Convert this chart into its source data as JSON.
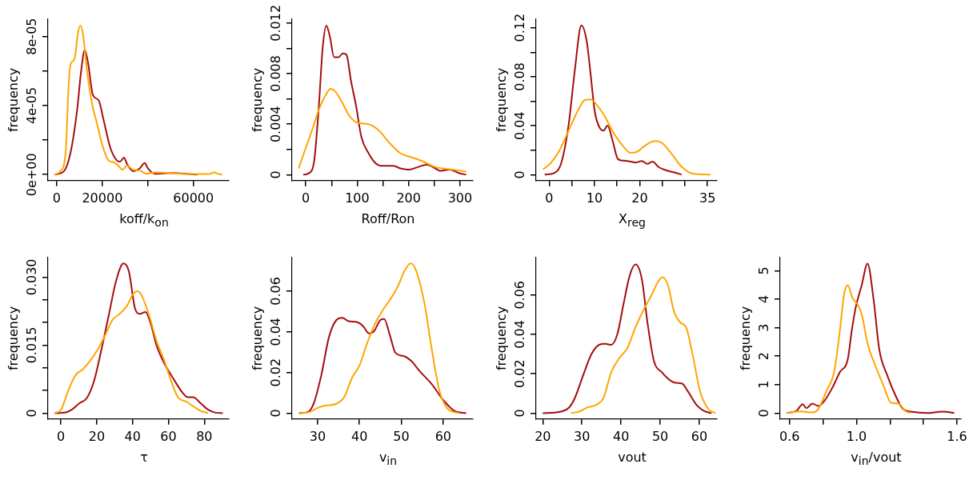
{
  "chart_data": [
    {
      "type": "line",
      "xlabel": "koff/k$_{on}$",
      "ylabel": "frequency",
      "marker": "none",
      "grid": false,
      "xlim": [
        -3840,
        75540
      ],
      "ylim": [
        -3.5e-06,
        9e-05
      ],
      "xticks": [
        0,
        20000,
        {
          "value": 40000,
          "label": null
        },
        60000
      ],
      "yticks": [
        {
          "value": 0,
          "label": "0e+00"
        },
        {
          "value": 2e-05,
          "label": null
        },
        {
          "value": 4e-05,
          "label": "4e-05"
        },
        {
          "value": 6e-05,
          "label": null
        },
        {
          "value": 8e-05,
          "label": "8e-05"
        }
      ],
      "series": [
        {
          "color": "#ffa500",
          "x": [
            -900,
            1700,
            3900,
            5300,
            6100,
            7800,
            9300,
            10400,
            11600,
            13300,
            15500,
            17600,
            19800,
            22700,
            24900,
            27000,
            28800,
            30900,
            33500,
            36400,
            39300,
            43700,
            50900,
            58100,
            66800,
            69000,
            71100,
            72600
          ],
          "values": [
            0,
            2e-06,
            1.3e-05,
            5.4e-05,
            6.4e-05,
            6.7e-05,
            8.2e-05,
            8.63e-05,
            8.05e-05,
            6e-05,
            4.1e-05,
            3e-05,
            1.8e-05,
            8.3e-06,
            7.2e-06,
            5.2e-06,
            2.8e-06,
            5.2e-06,
            2.8e-06,
            2.4e-06,
            5e-07,
            1.3e-06,
            8e-07,
            3e-07,
            3e-07,
            1.3e-06,
            3e-07,
            0
          ]
        },
        {
          "color": "#a50e0e",
          "x": [
            -900,
            3200,
            6100,
            9000,
            10700,
            12300,
            13700,
            15900,
            18400,
            20500,
            23400,
            26300,
            27800,
            29500,
            30900,
            33500,
            36400,
            38600,
            40000,
            42900,
            50900,
            58100,
            61700
          ],
          "values": [
            0,
            2e-06,
            1.3e-05,
            3.8e-05,
            6e-05,
            7.22e-05,
            6.5e-05,
            4.6e-05,
            4.3e-05,
            3.2e-05,
            1.6e-05,
            8.3e-06,
            7.5e-06,
            9.9e-06,
            6e-06,
            2e-06,
            3.6e-06,
            6.7e-06,
            3.6e-06,
            5e-07,
            9e-07,
            3e-07,
            0
          ]
        }
      ]
    },
    {
      "type": "line",
      "xlabel": "Roff/Ron",
      "ylabel": "frequency",
      "marker": "none",
      "grid": false,
      "xlim": [
        -26.7,
        325
      ],
      "ylim": [
        -0.00047,
        0.0123
      ],
      "xticks": [
        0,
        {
          "value": 50,
          "label": null
        },
        100,
        {
          "value": 150,
          "label": null
        },
        200,
        {
          "value": 250,
          "label": null
        },
        300
      ],
      "yticks": [
        0,
        {
          "value": 0.002,
          "label": null
        },
        0.004,
        {
          "value": 0.006,
          "label": null
        },
        0.008,
        {
          "value": 0.01,
          "label": null
        },
        0.012
      ],
      "series": [
        {
          "color": "#ffa500",
          "x": [
            -14,
            -1,
            12,
            26,
            40,
            48,
            57,
            71,
            84,
            101,
            122,
            142,
            163,
            184,
            204,
            225,
            252,
            286,
            312
          ],
          "values": [
            0.0005,
            0.002,
            0.0035,
            0.0052,
            0.0064,
            0.0068,
            0.0066,
            0.0057,
            0.0047,
            0.0041,
            0.004,
            0.0035,
            0.0025,
            0.0017,
            0.0014,
            0.0011,
            0.0006,
            0.0004,
            0.00025
          ]
        },
        {
          "color": "#a50e0e",
          "x": [
            -5,
            5,
            16,
            25,
            33,
            40,
            47,
            55,
            64,
            72,
            79,
            88,
            98,
            108,
            122,
            136,
            149,
            170,
            184,
            201,
            218,
            235,
            252,
            262,
            279,
            300,
            312
          ],
          "values": [
            0,
            0.0001,
            0.001,
            0.0052,
            0.0101,
            0.0118,
            0.0109,
            0.0093,
            0.0093,
            0.0096,
            0.0095,
            0.0074,
            0.0054,
            0.003,
            0.0017,
            0.0009,
            0.0007,
            0.0007,
            0.0005,
            0.0004,
            0.0006,
            0.0008,
            0.0005,
            0.0003,
            0.0004,
            0.0001,
            0
          ]
        }
      ]
    },
    {
      "type": "line",
      "xlabel": "X$_{reg}$",
      "ylabel": "frequency",
      "marker": "none",
      "grid": false,
      "xlim": [
        -2.9,
        37.1
      ],
      "ylim": [
        -0.0049,
        0.127
      ],
      "xticks": [
        0,
        {
          "value": 5,
          "label": null
        },
        10,
        {
          "value": 15,
          "label": null
        },
        20,
        {
          "value": 25,
          "label": null
        },
        {
          "value": 30,
          "label": null
        },
        35
      ],
      "yticks": [
        0,
        {
          "value": 0.02,
          "label": null
        },
        0.04,
        {
          "value": 0.06,
          "label": null
        },
        0.08,
        {
          "value": 0.1,
          "label": null
        },
        0.12
      ],
      "series": [
        {
          "color": "#ffa500",
          "x": [
            -1.4,
            0.2,
            2.3,
            4.3,
            6.3,
            7.9,
            9.1,
            10.3,
            12.4,
            14.4,
            16.4,
            18,
            19.2,
            21.3,
            23.3,
            24.9,
            26.9,
            29.3,
            31.8,
            35.7
          ],
          "values": [
            0.0043,
            0.0089,
            0.02,
            0.036,
            0.052,
            0.061,
            0.0615,
            0.058,
            0.047,
            0.033,
            0.023,
            0.0178,
            0.0183,
            0.024,
            0.0275,
            0.026,
            0.0178,
            0.0064,
            0.0008,
            0
          ]
        },
        {
          "color": "#a50e0e",
          "x": [
            -1,
            1.1,
            2.7,
            4.3,
            5.7,
            7.1,
            8.3,
            9.1,
            10.1,
            11.2,
            12,
            12.9,
            14,
            15.2,
            16.4,
            18,
            19.2,
            20.5,
            21.7,
            22.9,
            24.1,
            25.7,
            27.7,
            29.3
          ],
          "values": [
            0,
            0.0013,
            0.01,
            0.041,
            0.0865,
            0.122,
            0.109,
            0.084,
            0.051,
            0.038,
            0.036,
            0.04,
            0.028,
            0.0127,
            0.0114,
            0.0107,
            0.0099,
            0.0112,
            0.0089,
            0.0107,
            0.0064,
            0.0038,
            0.0018,
            0
          ]
        }
      ]
    },
    {
      "type": "line",
      "xlabel": "τ",
      "ylabel": "frequency",
      "marker": "none",
      "grid": false,
      "xlim": [
        -7.2,
        93.7
      ],
      "ylim": [
        -0.0013,
        0.0343
      ],
      "xticks": [
        0,
        20,
        40,
        60,
        80
      ],
      "yticks": [
        0,
        {
          "value": 0.005,
          "label": null
        },
        {
          "value": 0.01,
          "label": null
        },
        0.015,
        {
          "value": 0.02,
          "label": null
        },
        {
          "value": 0.025,
          "label": null
        },
        {
          "value": 0.03,
          "label": "0.030"
        }
      ],
      "series": [
        {
          "color": "#ffa500",
          "x": [
            -3.5,
            0,
            4.1,
            8.2,
            12.3,
            16.4,
            20.5,
            24.6,
            28.7,
            32.8,
            36.9,
            40,
            42.7,
            45.1,
            49.2,
            53.3,
            57.4,
            61.5,
            65.6,
            69.7,
            73.8,
            77.9,
            82
          ],
          "values": [
            0,
            0.0007,
            0.005,
            0.0084,
            0.0097,
            0.0116,
            0.014,
            0.0171,
            0.0205,
            0.0219,
            0.0237,
            0.0261,
            0.0269,
            0.0259,
            0.0216,
            0.016,
            0.0119,
            0.0071,
            0.0033,
            0.0026,
            0.0015,
            0.0005,
            0
          ]
        },
        {
          "color": "#a50e0e",
          "x": [
            -3.5,
            2.1,
            6.2,
            10.3,
            14.4,
            18.5,
            22.6,
            26.7,
            30.8,
            34.9,
            37.9,
            41.4,
            44.1,
            47.2,
            50.3,
            53.3,
            57.4,
            62.6,
            67.7,
            70.8,
            73.8,
            77.9,
            82,
            86.2,
            90.3
          ],
          "values": [
            0,
            0.0001,
            0.0008,
            0.0022,
            0.0033,
            0.0071,
            0.014,
            0.0216,
            0.0292,
            0.033,
            0.0313,
            0.023,
            0.0219,
            0.0223,
            0.0195,
            0.015,
            0.0112,
            0.0077,
            0.0046,
            0.0035,
            0.0035,
            0.0022,
            0.0008,
            0.0001,
            0
          ]
        }
      ]
    },
    {
      "type": "line",
      "xlabel": "v$_{in}$",
      "ylabel": "frequency",
      "marker": "none",
      "grid": false,
      "xlim": [
        23.9,
        67.1
      ],
      "ylim": [
        -0.0029,
        0.0765
      ],
      "xticks": [
        30,
        40,
        50,
        60
      ],
      "yticks": [
        0,
        0.02,
        0.04,
        0.06
      ],
      "series": [
        {
          "color": "#ffa500",
          "x": [
            25.5,
            28.2,
            30,
            31.8,
            34.5,
            36.4,
            38.2,
            40,
            41.8,
            43.6,
            45.5,
            47.3,
            49.1,
            50.9,
            52.3,
            53.6,
            55.5,
            57.3,
            59.1,
            60.9,
            63.6
          ],
          "values": [
            0,
            0.0006,
            0.0026,
            0.0037,
            0.0046,
            0.008,
            0.0173,
            0.0234,
            0.0342,
            0.0435,
            0.0504,
            0.0558,
            0.062,
            0.0705,
            0.0736,
            0.0697,
            0.0543,
            0.0311,
            0.0111,
            0.0026,
            0
          ]
        },
        {
          "color": "#a50e0e",
          "x": [
            25.6,
            27.7,
            29.1,
            30.9,
            32.7,
            34.5,
            35.9,
            37.3,
            39.5,
            40.9,
            42.3,
            43.5,
            45,
            45.9,
            47.3,
            48.6,
            50.5,
            52.3,
            54.5,
            57.3,
            60,
            62.7,
            65.5
          ],
          "values": [
            0,
            0.0006,
            0.0049,
            0.0188,
            0.0373,
            0.0458,
            0.0469,
            0.0453,
            0.0447,
            0.0427,
            0.0392,
            0.0404,
            0.0458,
            0.0463,
            0.0381,
            0.0296,
            0.0281,
            0.0258,
            0.0204,
            0.0142,
            0.0065,
            0.0011,
            0
          ]
        }
      ]
    },
    {
      "type": "line",
      "xlabel": "vout",
      "ylabel": "frequency",
      "marker": "none",
      "grid": false,
      "xlim": [
        18.3,
        64.5
      ],
      "ylim": [
        -0.003,
        0.079
      ],
      "xticks": [
        20,
        30,
        40,
        50,
        60
      ],
      "yticks": [
        0,
        0.02,
        0.04,
        0.06
      ],
      "series": [
        {
          "color": "#ffa500",
          "x": [
            27.2,
            29.3,
            31.3,
            33.9,
            35.5,
            37.5,
            39.6,
            41.6,
            43.7,
            45.8,
            47.8,
            49.4,
            50.6,
            52,
            53.5,
            55.1,
            56.6,
            58.2,
            60.2,
            62.3,
            64.1
          ],
          "values": [
            0,
            0.0008,
            0.0028,
            0.0044,
            0.0077,
            0.0208,
            0.0281,
            0.033,
            0.0437,
            0.0526,
            0.06,
            0.0665,
            0.069,
            0.0649,
            0.0518,
            0.0461,
            0.0437,
            0.0306,
            0.011,
            0.002,
            0
          ]
        },
        {
          "color": "#a50e0e",
          "x": [
            20,
            23.1,
            25.2,
            26.7,
            28.2,
            30.3,
            32.4,
            34.4,
            36,
            37.5,
            39.1,
            40.6,
            42.2,
            43.7,
            45.3,
            46.8,
            48.4,
            50.4,
            52.5,
            54,
            55.6,
            57.1,
            59.2,
            61.2,
            63.1
          ],
          "values": [
            0,
            0.0003,
            0.0011,
            0.0028,
            0.0077,
            0.0191,
            0.0298,
            0.0347,
            0.0352,
            0.0347,
            0.0404,
            0.0551,
            0.0698,
            0.0755,
            0.0682,
            0.0453,
            0.0265,
            0.0208,
            0.0167,
            0.0154,
            0.015,
            0.011,
            0.0044,
            0.0011,
            0
          ]
        }
      ]
    },
    {
      "type": "line",
      "xlabel": "v$_{in}$/vout",
      "ylabel": "frequency",
      "marker": "none",
      "grid": false,
      "xlim": [
        0.544,
        1.624
      ],
      "ylim": [
        -0.21,
        5.46
      ],
      "xticks": [
        {
          "value": 0.6,
          "label": "0.6"
        },
        {
          "value": 0.8,
          "label": null
        },
        {
          "value": 1,
          "label": "1.0"
        },
        {
          "value": 1.2,
          "label": null
        },
        {
          "value": 1.4,
          "label": null
        },
        {
          "value": 1.6,
          "label": "1.6"
        }
      ],
      "yticks": [
        0,
        1,
        2,
        3,
        4,
        5
      ],
      "series": [
        {
          "color": "#ffa500",
          "x": [
            0.584,
            0.666,
            0.736,
            0.772,
            0.819,
            0.866,
            0.901,
            0.925,
            0.948,
            0.976,
            1.007,
            1.031,
            1.066,
            1.113,
            1.16,
            1.207,
            1.254,
            1.289,
            1.325
          ],
          "values": [
            0,
            0.06,
            0.02,
            0.14,
            0.76,
            1.44,
            2.91,
            4.15,
            4.49,
            4.04,
            3.81,
            3.47,
            2.45,
            1.66,
            0.98,
            0.36,
            0.33,
            0.08,
            0
          ]
        },
        {
          "color": "#a50e0e",
          "x": [
            0.584,
            0.642,
            0.678,
            0.701,
            0.736,
            0.772,
            0.807,
            0.854,
            0.901,
            0.948,
            0.972,
            0.995,
            1.031,
            1.066,
            1.101,
            1.136,
            1.184,
            1.231,
            1.278,
            1.325,
            1.419,
            1.513,
            1.584
          ],
          "values": [
            0,
            0.08,
            0.31,
            0.17,
            0.33,
            0.25,
            0.42,
            0.87,
            1.44,
            1.89,
            2.91,
            3.7,
            4.49,
            5.25,
            4.04,
            2.23,
            1.32,
            0.64,
            0.14,
            0.05,
            0,
            0.05,
            0
          ]
        }
      ]
    }
  ]
}
